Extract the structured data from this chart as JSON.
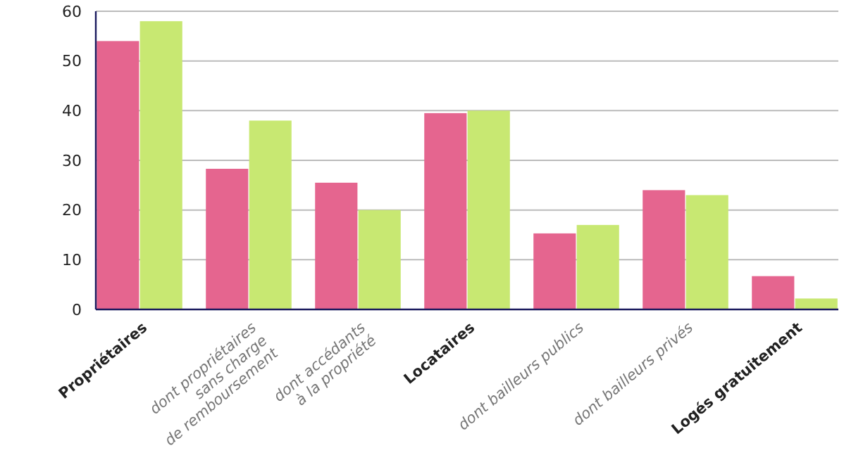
{
  "chart_data": {
    "type": "bar",
    "categories": [
      "Propriétaires",
      "dont propriétaires\nsans charge\nde remboursement",
      "dont accédants\nà la propriété",
      "Locataires",
      "dont bailleurs publics",
      "dont bailleurs privés",
      "Logés gratuitement"
    ],
    "series": [
      {
        "color": "#e5658f",
        "values": [
          54,
          28.3,
          25.5,
          39.5,
          15.3,
          24,
          6.7
        ]
      },
      {
        "color": "#c8e872",
        "values": [
          58,
          38,
          20,
          40,
          17,
          23,
          2.2
        ]
      }
    ],
    "ylim": [
      0,
      60
    ],
    "yticks": [
      0,
      10,
      20,
      30,
      40,
      50,
      60
    ],
    "grid": "y"
  }
}
